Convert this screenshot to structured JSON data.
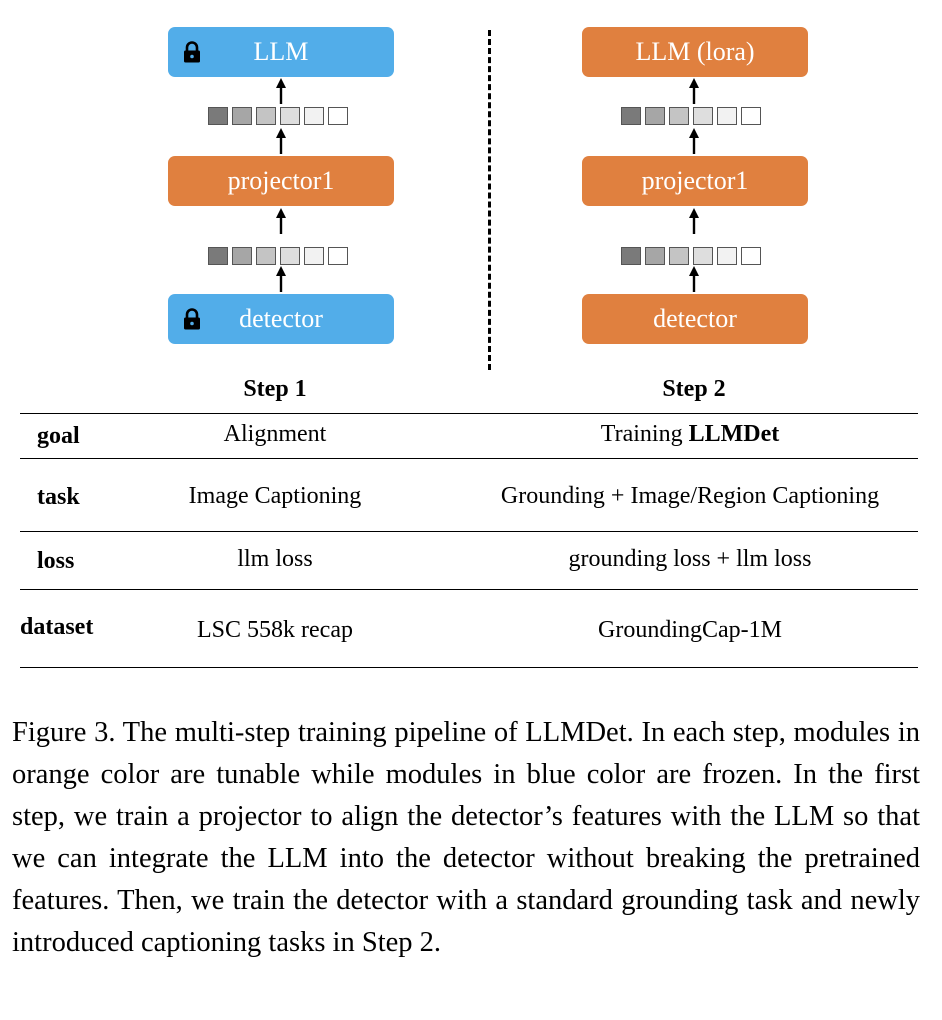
{
  "figure": {
    "step1": {
      "label": "Step 1",
      "top_box": "LLM",
      "middle_box": "projector1",
      "bottom_box": "detector",
      "top_state": "frozen",
      "middle_state": "tunable",
      "bottom_state": "frozen"
    },
    "step2": {
      "label": "Step 2",
      "top_box": "LLM (lora)",
      "middle_box": "projector1",
      "bottom_box": "detector",
      "top_state": "tunable",
      "middle_state": "tunable",
      "bottom_state": "tunable"
    },
    "colors": {
      "frozen_blue": "#52ADE9",
      "tunable_orange": "#E0803F",
      "token_shades": [
        "#7a7a7a",
        "#a6a6a6",
        "#c4c4c4",
        "#dedede",
        "#f2f2f2",
        "#ffffff"
      ]
    },
    "icons": {
      "frozen": "lock-icon",
      "flow": "arrow-up-icon"
    }
  },
  "table": {
    "rows": [
      {
        "label": "goal",
        "step1": "Alignment",
        "step2_prefix": "Training ",
        "step2_bold": "LLMDet"
      },
      {
        "label": "task",
        "step1": "Image Captioning",
        "step2": "Grounding + Image/Region Captioning"
      },
      {
        "label": "loss",
        "step1": "llm loss",
        "step2": "grounding loss + llm loss"
      },
      {
        "label": "dataset",
        "step1": "LSC 558k recap",
        "step2": "GroundingCap-1M"
      }
    ]
  },
  "caption": "Figure 3. The multi-step training pipeline of LLMDet. In each step, modules in orange color are tunable while modules in blue color are frozen. In the first step, we train a projector to align the detector’s features with the LLM so that we can integrate the LLM into the detector without breaking the pretrained features. Then, we train the detector with a standard grounding task and newly introduced captioning tasks in Step 2."
}
